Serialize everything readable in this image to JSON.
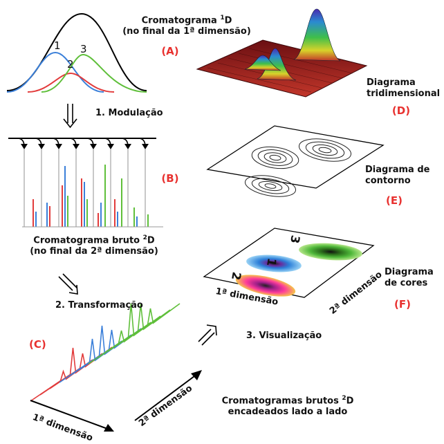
{
  "panel_a": {
    "title_line1": "Cromatograma ",
    "title_sup": "1",
    "title_dim": "D",
    "title_line2": "(no final da 1ª dimensão)",
    "tag": "(A)",
    "peak_labels": [
      "1",
      "2",
      "3"
    ]
  },
  "step1": "1. Modulação",
  "panel_b": {
    "title_line1": "Cromatograma bruto ",
    "title_sup": "2",
    "title_dim": "D",
    "title_line2": "(no final da 2ª dimensão)",
    "tag": "(B)"
  },
  "step2": "2. Transformação",
  "panel_c": {
    "tag": "(C)",
    "axis1": "1ª dimensão",
    "axis2": "2ª dimensão",
    "caption_line1": "Cromatogramas brutos ",
    "caption_sup": "2",
    "caption_dim": "D",
    "caption_line2": "encadeados lado a lado"
  },
  "step3": "3. Visualização",
  "panel_d": {
    "line1": "Diagrama",
    "line2": "tridimensional",
    "tag": "(D)"
  },
  "panel_e": {
    "line1": "Diagrama de",
    "line2": "contorno",
    "tag": "(E)"
  },
  "panel_f": {
    "line1": "Diagrama",
    "line2": "de cores",
    "tag": "(F)",
    "axis1": "1ª dimensão",
    "axis2": "2ª dimensão",
    "peak_labels": [
      "1",
      "2",
      "3"
    ]
  },
  "colors": {
    "peak1": "#3a7fd9",
    "peak2": "#e23b3b",
    "peak3": "#5fbf3a",
    "tag": "#e8312f"
  }
}
